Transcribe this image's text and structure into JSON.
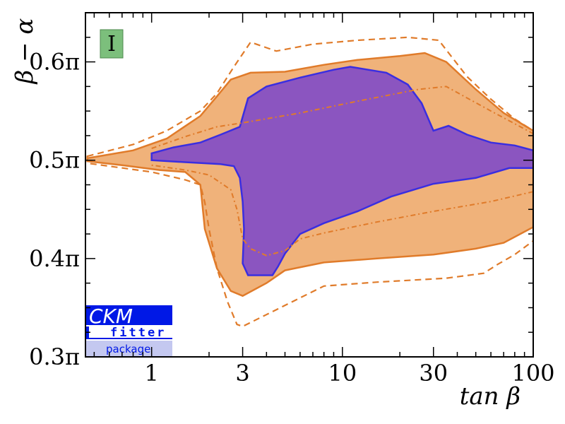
{
  "chart_data": {
    "type": "area",
    "xlabel": "tan β",
    "ylabel": "β − α",
    "x_scale": "log",
    "xlim": [
      0.45,
      100
    ],
    "ylim": [
      0.3,
      0.65
    ],
    "y_unit": "π",
    "x_ticks": [
      {
        "value": 1,
        "label": "1"
      },
      {
        "value": 3,
        "label": "3"
      },
      {
        "value": 10,
        "label": "10"
      },
      {
        "value": 30,
        "label": "30"
      },
      {
        "value": 100,
        "label": "100"
      }
    ],
    "y_ticks": [
      {
        "value": 0.3,
        "label": "0.3π"
      },
      {
        "value": 0.4,
        "label": "0.4π"
      },
      {
        "value": 0.5,
        "label": "0.5π"
      },
      {
        "value": 0.6,
        "label": "0.6π"
      }
    ],
    "grid": false,
    "panel_label": "I",
    "logo": {
      "line1": "CKM",
      "line2": "fitter",
      "line3": "package"
    },
    "colors": {
      "orange_fill": "#f0b27a",
      "orange_line": "#e07b2a",
      "purple_fill": "#8b55c0",
      "purple_line": "#3a2ee0",
      "panel_fill": "#7cbf7c",
      "logo_blue": "#0018e6",
      "logo_light": "#c4c8f0"
    },
    "series": [
      {
        "style": "orange-filled",
        "upper": [
          [
            0.46,
            0.502
          ],
          [
            0.8,
            0.51
          ],
          [
            1.2,
            0.522
          ],
          [
            1.8,
            0.545
          ],
          [
            2.2,
            0.565
          ],
          [
            2.6,
            0.582
          ],
          [
            3.3,
            0.589
          ],
          [
            5,
            0.59
          ],
          [
            8,
            0.597
          ],
          [
            12,
            0.602
          ],
          [
            20,
            0.606
          ],
          [
            27,
            0.609
          ],
          [
            35,
            0.6
          ],
          [
            50,
            0.572
          ],
          [
            70,
            0.548
          ],
          [
            100,
            0.53
          ]
        ],
        "lower": [
          [
            100,
            0.432
          ],
          [
            70,
            0.416
          ],
          [
            50,
            0.41
          ],
          [
            30,
            0.404
          ],
          [
            15,
            0.4
          ],
          [
            8,
            0.396
          ],
          [
            5,
            0.388
          ],
          [
            4,
            0.375
          ],
          [
            3,
            0.362
          ],
          [
            2.6,
            0.367
          ],
          [
            2.2,
            0.39
          ],
          [
            1.9,
            0.43
          ],
          [
            1.8,
            0.475
          ],
          [
            1.5,
            0.488
          ],
          [
            1.1,
            0.49
          ],
          [
            0.7,
            0.495
          ],
          [
            0.46,
            0.499
          ]
        ]
      },
      {
        "style": "purple-filled",
        "upper": [
          [
            1,
            0.507
          ],
          [
            1.3,
            0.513
          ],
          [
            1.8,
            0.518
          ],
          [
            2.3,
            0.526
          ],
          [
            2.9,
            0.534
          ],
          [
            3.2,
            0.563
          ],
          [
            4,
            0.575
          ],
          [
            6,
            0.584
          ],
          [
            9,
            0.592
          ],
          [
            11,
            0.595
          ],
          [
            17,
            0.589
          ],
          [
            22,
            0.577
          ],
          [
            26,
            0.558
          ],
          [
            30,
            0.53
          ],
          [
            36,
            0.535
          ],
          [
            45,
            0.526
          ],
          [
            60,
            0.518
          ],
          [
            80,
            0.515
          ],
          [
            100,
            0.51
          ]
        ],
        "lower": [
          [
            100,
            0.492
          ],
          [
            75,
            0.492
          ],
          [
            50,
            0.482
          ],
          [
            30,
            0.476
          ],
          [
            18,
            0.463
          ],
          [
            12,
            0.448
          ],
          [
            8,
            0.436
          ],
          [
            6,
            0.425
          ],
          [
            5,
            0.405
          ],
          [
            4.6,
            0.392
          ],
          [
            4.3,
            0.383
          ],
          [
            3.2,
            0.383
          ],
          [
            3,
            0.395
          ],
          [
            3.05,
            0.43
          ],
          [
            3,
            0.458
          ],
          [
            2.9,
            0.482
          ],
          [
            2.7,
            0.494
          ],
          [
            2.3,
            0.496
          ],
          [
            1.5,
            0.498
          ],
          [
            1,
            0.5
          ]
        ]
      },
      {
        "style": "orange-dashed",
        "upper": [
          [
            0.46,
            0.504
          ],
          [
            0.8,
            0.516
          ],
          [
            1.2,
            0.53
          ],
          [
            1.8,
            0.55
          ],
          [
            2.2,
            0.568
          ],
          [
            2.7,
            0.595
          ],
          [
            3.3,
            0.62
          ],
          [
            4.5,
            0.611
          ],
          [
            7,
            0.618
          ],
          [
            12,
            0.622
          ],
          [
            22,
            0.625
          ],
          [
            32,
            0.622
          ],
          [
            45,
            0.585
          ],
          [
            60,
            0.562
          ],
          [
            80,
            0.542
          ],
          [
            100,
            0.53
          ]
        ],
        "lower": [
          [
            100,
            0.418
          ],
          [
            80,
            0.404
          ],
          [
            65,
            0.394
          ],
          [
            55,
            0.385
          ],
          [
            35,
            0.38
          ],
          [
            15,
            0.376
          ],
          [
            8,
            0.372
          ],
          [
            6,
            0.36
          ],
          [
            4,
            0.343
          ],
          [
            3,
            0.331
          ],
          [
            2.8,
            0.333
          ],
          [
            2.5,
            0.356
          ],
          [
            2.2,
            0.39
          ],
          [
            2,
            0.43
          ],
          [
            1.9,
            0.457
          ],
          [
            1.8,
            0.475
          ],
          [
            1.5,
            0.48
          ],
          [
            1,
            0.488
          ],
          [
            0.46,
            0.497
          ]
        ]
      },
      {
        "style": "orange-dashdot",
        "upper": [
          [
            1,
            0.512
          ],
          [
            1.5,
            0.524
          ],
          [
            2.2,
            0.534
          ],
          [
            3,
            0.538
          ],
          [
            6,
            0.548
          ],
          [
            12,
            0.56
          ],
          [
            25,
            0.572
          ],
          [
            35,
            0.575
          ],
          [
            60,
            0.55
          ],
          [
            100,
            0.527
          ]
        ],
        "lower": [
          [
            100,
            0.468
          ],
          [
            60,
            0.458
          ],
          [
            30,
            0.448
          ],
          [
            15,
            0.437
          ],
          [
            8,
            0.426
          ],
          [
            6,
            0.42
          ],
          [
            5,
            0.408
          ],
          [
            4,
            0.403
          ],
          [
            3.3,
            0.41
          ],
          [
            3,
            0.42
          ],
          [
            2.8,
            0.45
          ],
          [
            2.6,
            0.47
          ],
          [
            2,
            0.485
          ],
          [
            1.5,
            0.49
          ],
          [
            1,
            0.495
          ]
        ]
      }
    ]
  }
}
